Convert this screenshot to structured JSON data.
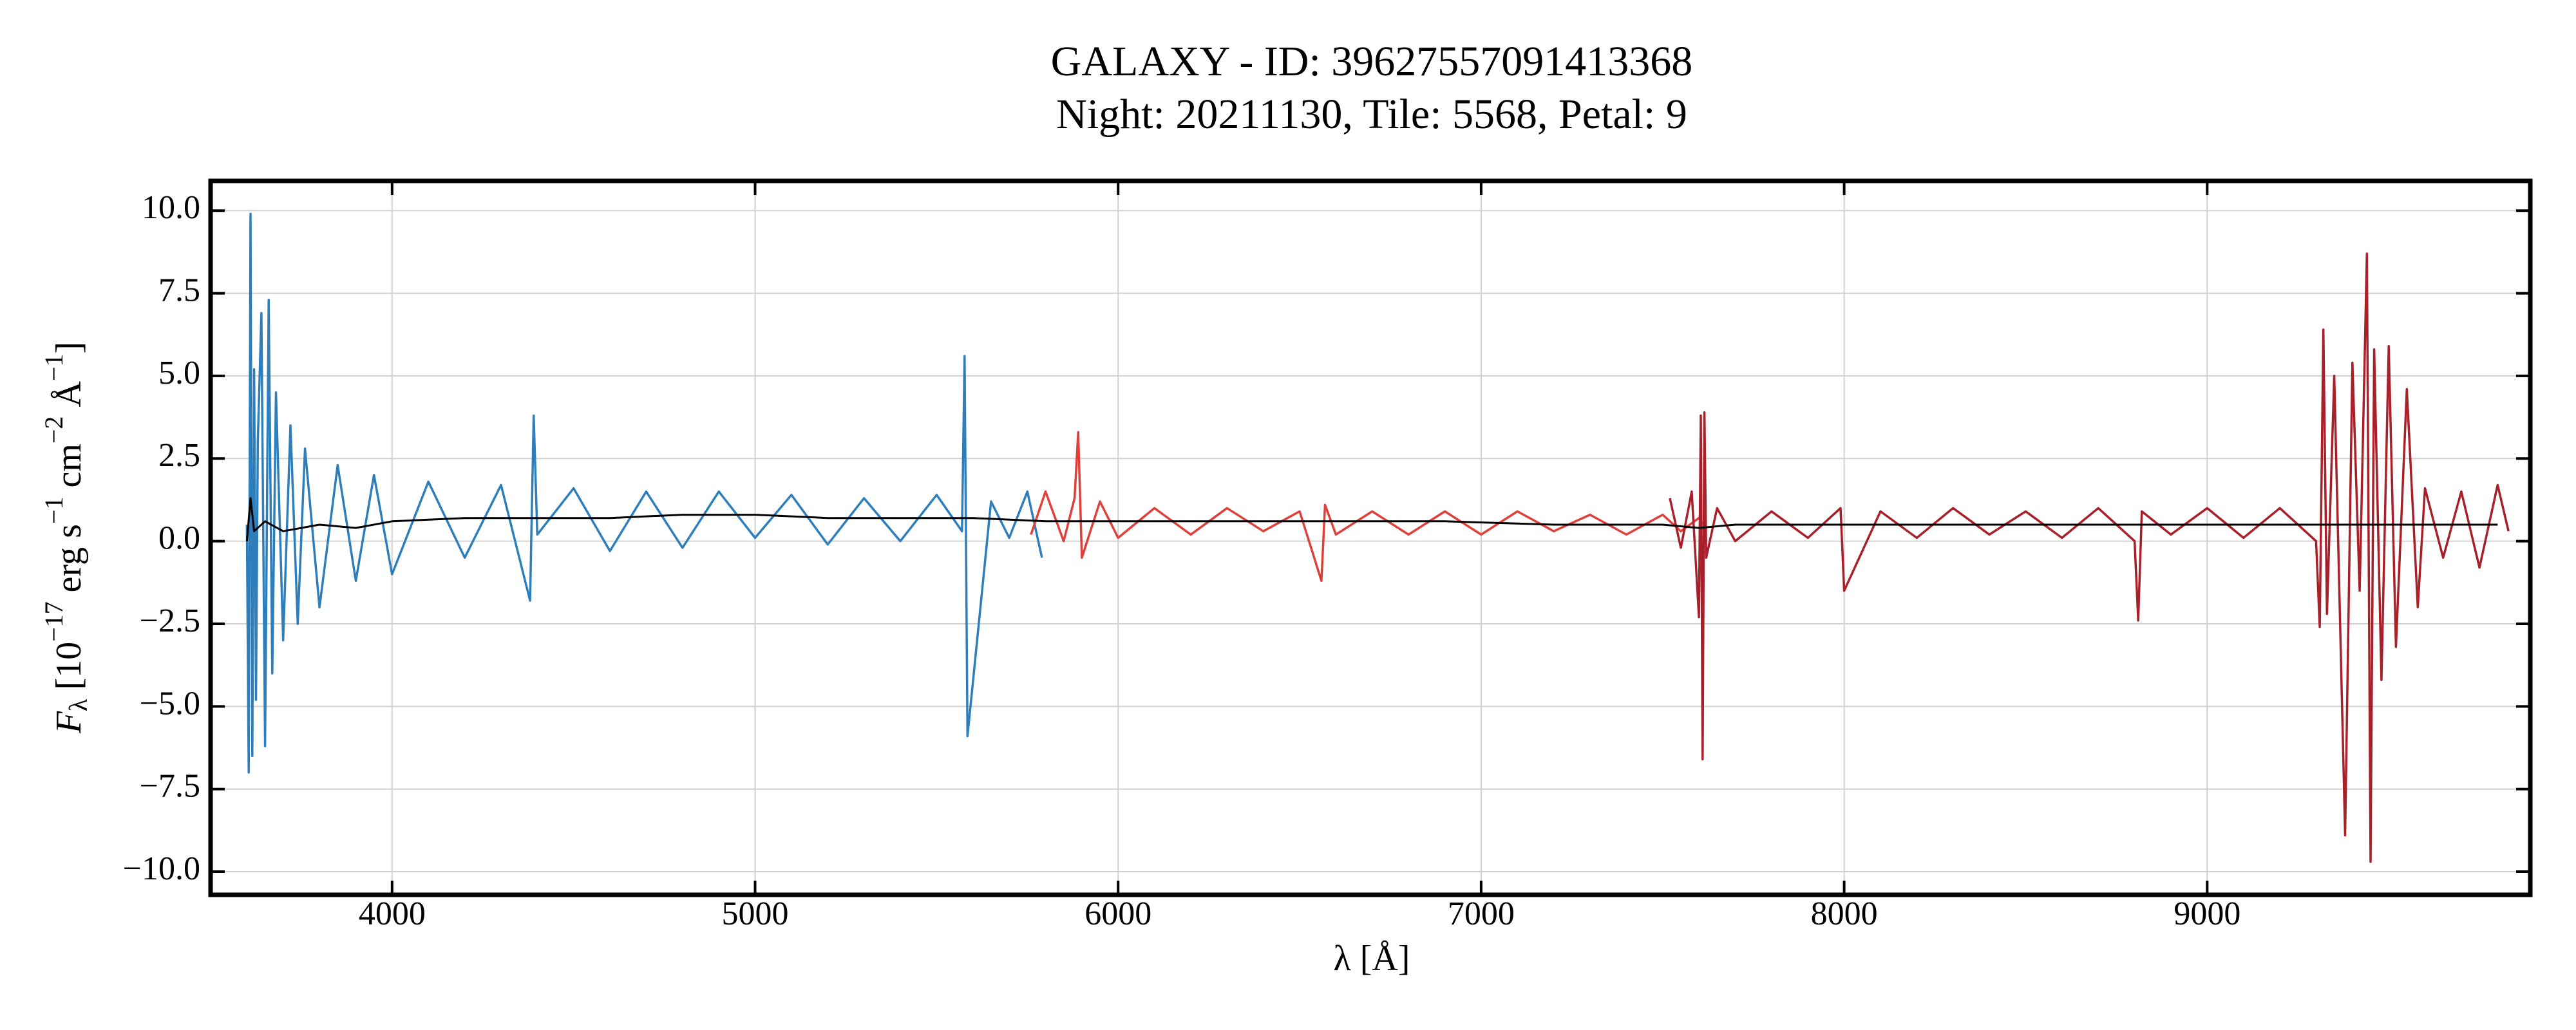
{
  "chart_data": {
    "type": "line",
    "title": [
      "GALAXY - ID: 39627557091413368",
      "Night: 20211130, Tile: 5568, Petal: 9"
    ],
    "x_label": "λ [Å]",
    "y_label_parts": [
      "F",
      "λ",
      " [10",
      "−17",
      " erg s",
      "−1",
      " cm",
      "−2",
      " Å",
      "−1",
      "]"
    ],
    "xlim": [
      3500,
      9890
    ],
    "ylim": [
      -10.7,
      10.9
    ],
    "xticks": [
      4000,
      5000,
      6000,
      7000,
      8000,
      9000
    ],
    "yticks": [
      {
        "value": 10,
        "label": "10.0"
      },
      7.5,
      {
        "value": 5,
        "label": "5.0"
      },
      2.5,
      {
        "value": 0,
        "label": "0.0"
      },
      {
        "value": -2.5,
        "label": "−2.5"
      },
      {
        "value": -5,
        "label": "−5.0"
      },
      {
        "value": -7.5,
        "label": "−7.5"
      },
      {
        "value": -10,
        "label": "−10.0"
      }
    ],
    "grid": true,
    "series": [
      {
        "color": "#2e7ebc",
        "x": [
          3600,
          3605,
          3610,
          3615,
          3620,
          3625,
          3630,
          3640,
          3650,
          3660,
          3670,
          3680,
          3700,
          3720,
          3740,
          3760,
          3800,
          3850,
          3900,
          3950,
          4000,
          4100,
          4200,
          4300,
          4380,
          4390,
          4400,
          4500,
          4600,
          4700,
          4800,
          4900,
          5000,
          5100,
          5200,
          5300,
          5400,
          5500,
          5570,
          5577,
          5585,
          5650,
          5700,
          5750,
          5790
        ],
        "values": [
          0.5,
          -7.0,
          9.9,
          -6.5,
          5.2,
          -4.8,
          3.0,
          6.9,
          -6.2,
          7.3,
          -4.0,
          4.5,
          -3.0,
          3.5,
          -2.5,
          2.8,
          -2.0,
          2.3,
          -1.2,
          2.0,
          -1.0,
          1.8,
          -0.5,
          1.7,
          -1.8,
          3.8,
          0.2,
          1.6,
          -0.3,
          1.5,
          -0.2,
          1.5,
          0.1,
          1.4,
          -0.1,
          1.3,
          0.0,
          1.4,
          0.3,
          5.6,
          -5.9,
          1.2,
          0.1,
          1.5,
          -0.5
        ]
      },
      {
        "color": "#e0403a",
        "x": [
          5760,
          5800,
          5850,
          5880,
          5890,
          5900,
          5950,
          6000,
          6100,
          6200,
          6300,
          6400,
          6500,
          6560,
          6570,
          6600,
          6700,
          6800,
          6900,
          7000,
          7100,
          7200,
          7300,
          7400,
          7500,
          7550,
          7600,
          7620
        ],
        "values": [
          0.2,
          1.5,
          0.0,
          1.3,
          3.3,
          -0.5,
          1.2,
          0.1,
          1.0,
          0.2,
          1.0,
          0.3,
          0.9,
          -1.2,
          1.1,
          0.2,
          0.9,
          0.2,
          0.9,
          0.2,
          0.9,
          0.3,
          0.8,
          0.2,
          0.8,
          0.3,
          0.7,
          0.4
        ]
      },
      {
        "color": "#a8202a",
        "x": [
          7520,
          7550,
          7580,
          7600,
          7605,
          7610,
          7615,
          7620,
          7650,
          7700,
          7800,
          7900,
          7990,
          8000,
          8100,
          8200,
          8300,
          8400,
          8500,
          8600,
          8700,
          8800,
          8810,
          8820,
          8900,
          9000,
          9100,
          9200,
          9300,
          9310,
          9320,
          9330,
          9350,
          9380,
          9400,
          9420,
          9440,
          9450,
          9460,
          9480,
          9500,
          9520,
          9550,
          9580,
          9600,
          9650,
          9700,
          9750,
          9800,
          9830
        ],
        "values": [
          1.3,
          -0.2,
          1.5,
          -2.3,
          3.8,
          -6.6,
          3.9,
          -0.5,
          1.0,
          0.0,
          0.9,
          0.1,
          1.0,
          -1.5,
          0.9,
          0.1,
          1.0,
          0.2,
          0.9,
          0.1,
          1.0,
          0.0,
          -2.4,
          0.9,
          0.2,
          1.0,
          0.1,
          1.0,
          0.0,
          -2.6,
          6.4,
          -2.2,
          5.0,
          -8.9,
          5.4,
          -1.5,
          8.7,
          -9.7,
          5.8,
          -4.2,
          5.9,
          -3.2,
          4.6,
          -2.0,
          1.6,
          -0.5,
          1.5,
          -0.8,
          1.7,
          0.3
        ]
      },
      {
        "color": "#000000",
        "x": [
          3600,
          3610,
          3620,
          3650,
          3700,
          3800,
          3900,
          4000,
          4200,
          4400,
          4600,
          4800,
          5000,
          5200,
          5400,
          5600,
          5800,
          6000,
          6300,
          6600,
          6900,
          7200,
          7500,
          7600,
          7700,
          8000,
          8500,
          9000,
          9400,
          9800
        ],
        "values": [
          0.0,
          1.3,
          0.3,
          0.6,
          0.3,
          0.5,
          0.4,
          0.6,
          0.7,
          0.7,
          0.7,
          0.8,
          0.8,
          0.7,
          0.7,
          0.7,
          0.6,
          0.6,
          0.6,
          0.6,
          0.6,
          0.5,
          0.5,
          0.4,
          0.5,
          0.5,
          0.5,
          0.5,
          0.5,
          0.5
        ]
      }
    ]
  }
}
